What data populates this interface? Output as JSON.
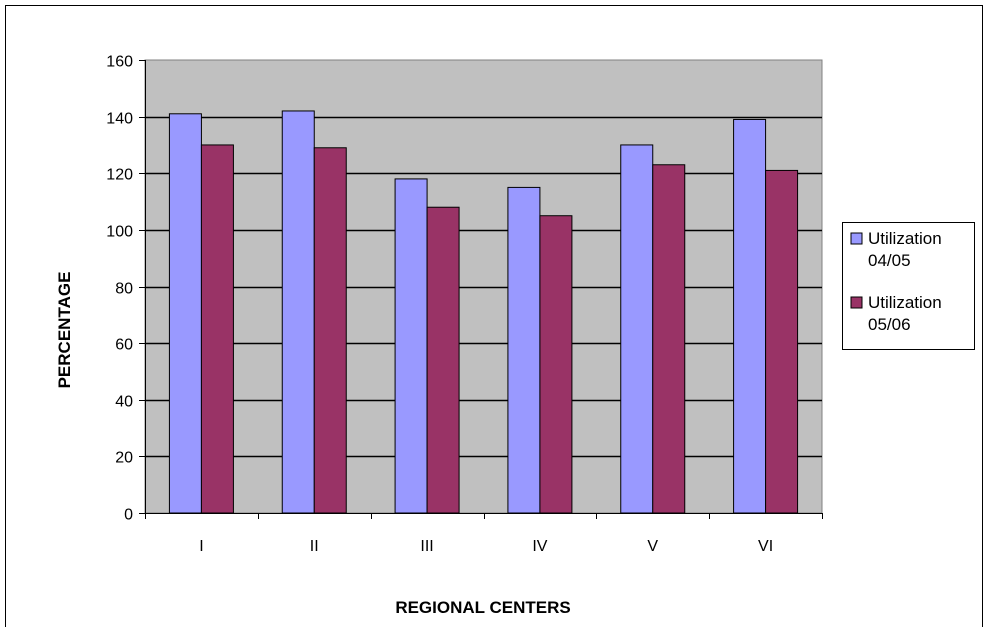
{
  "chart_data": {
    "type": "bar",
    "categories": [
      "I",
      "II",
      "III",
      "IV",
      "V",
      "VI"
    ],
    "series": [
      {
        "name": "Utilization 04/05",
        "legend_lines": [
          "Utilization",
          "04/05"
        ],
        "color": "#9999ff",
        "values": [
          141,
          142,
          118,
          115,
          130,
          139
        ]
      },
      {
        "name": "Utilization 05/06",
        "legend_lines": [
          "Utilization",
          "05/06"
        ],
        "color": "#993366",
        "values": [
          130,
          129,
          108,
          105,
          123,
          121
        ]
      }
    ],
    "title": "",
    "xlabel": "REGIONAL CENTERS",
    "ylabel": "PERCENTAGE",
    "ylim": [
      0,
      160
    ],
    "yticks": [
      0,
      20,
      40,
      60,
      80,
      100,
      120,
      140,
      160
    ],
    "plot_background": "#c0c0c0",
    "grid": true,
    "legend_position": "right"
  }
}
